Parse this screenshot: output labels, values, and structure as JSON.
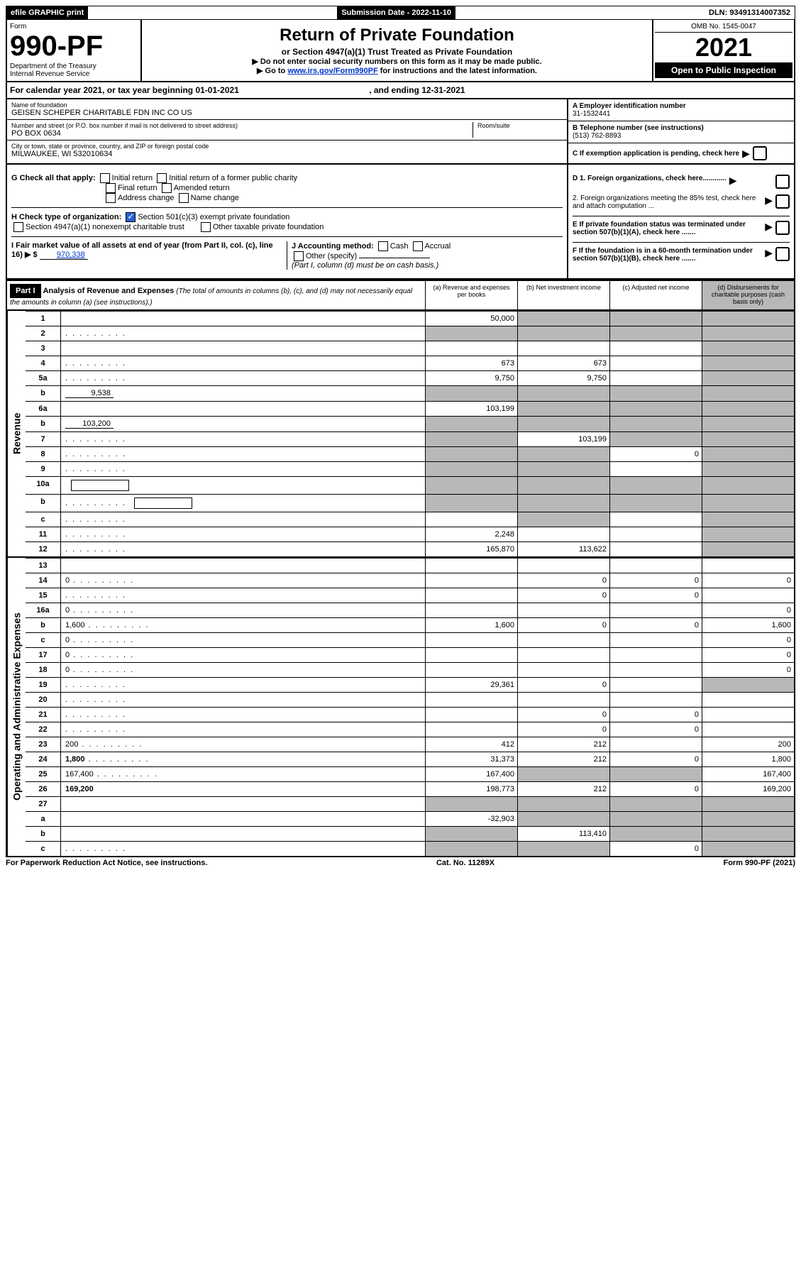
{
  "top": {
    "efile": "efile GRAPHIC print",
    "submission_label": "Submission Date - 2022-11-10",
    "dln": "DLN: 93491314007352"
  },
  "header": {
    "form_label": "Form",
    "form_number": "990-PF",
    "dept": "Department of the Treasury",
    "irs": "Internal Revenue Service",
    "title": "Return of Private Foundation",
    "subtitle": "or Section 4947(a)(1) Trust Treated as Private Foundation",
    "note1": "▶ Do not enter social security numbers on this form as it may be made public.",
    "note2_pre": "▶ Go to ",
    "note2_link": "www.irs.gov/Form990PF",
    "note2_post": " for instructions and the latest information.",
    "omb": "OMB No. 1545-0047",
    "year": "2021",
    "open": "Open to Public Inspection"
  },
  "cal_year": {
    "text_pre": "For calendar year 2021, or tax year beginning ",
    "begin": "01-01-2021",
    "text_mid": " , and ending ",
    "end": "12-31-2021"
  },
  "info": {
    "name_lbl": "Name of foundation",
    "name": "GEISEN SCHEPER CHARITABLE FDN INC CO US",
    "addr_lbl": "Number and street (or P.O. box number if mail is not delivered to street address)",
    "addr": "PO BOX 0634",
    "room_lbl": "Room/suite",
    "city_lbl": "City or town, state or province, country, and ZIP or foreign postal code",
    "city": "MILWAUKEE, WI  532010634",
    "ein_lbl": "A Employer identification number",
    "ein": "31-1532441",
    "phone_lbl": "B Telephone number (see instructions)",
    "phone": "(513) 762-8893",
    "c_lbl": "C If exemption application is pending, check here"
  },
  "checks": {
    "g_lbl": "G Check all that apply:",
    "g_opts": [
      "Initial return",
      "Initial return of a former public charity",
      "Final return",
      "Amended return",
      "Address change",
      "Name change"
    ],
    "h_lbl": "H Check type of organization:",
    "h_501c3": "Section 501(c)(3) exempt private foundation",
    "h_4947": "Section 4947(a)(1) nonexempt charitable trust",
    "h_other": "Other taxable private foundation",
    "i_lbl": "I Fair market value of all assets at end of year (from Part II, col. (c), line 16) ▶ $",
    "i_val": "970,338",
    "j_lbl": "J Accounting method:",
    "j_cash": "Cash",
    "j_accrual": "Accrual",
    "j_other": "Other (specify)",
    "j_note": "(Part I, column (d) must be on cash basis.)",
    "d1": "D 1. Foreign organizations, check here............",
    "d2": "2. Foreign organizations meeting the 85% test, check here and attach computation ...",
    "e": "E  If private foundation status was terminated under section 507(b)(1)(A), check here .......",
    "f": "F  If the foundation is in a 60-month termination under section 507(b)(1)(B), check here .......",
    "arrow": "▶"
  },
  "part1": {
    "label": "Part I",
    "title": "Analysis of Revenue and Expenses",
    "title_note": "(The total of amounts in columns (b), (c), and (d) may not necessarily equal the amounts in column (a) (see instructions).)",
    "col_a": "(a) Revenue and expenses per books",
    "col_b": "(b) Net investment income",
    "col_c": "(c) Adjusted net income",
    "col_d": "(d) Disbursements for charitable purposes (cash basis only)"
  },
  "sides": {
    "revenue": "Revenue",
    "expenses": "Operating and Administrative Expenses"
  },
  "lines": [
    {
      "n": "1",
      "d": "",
      "a": "50,000",
      "b": "",
      "c": "",
      "shade_b": true,
      "shade_c": true,
      "shade_d": true
    },
    {
      "n": "2",
      "d": "",
      "dots": true,
      "a": "",
      "b": "",
      "c": "",
      "shade_a": true,
      "shade_b": true,
      "shade_c": true,
      "shade_d": true
    },
    {
      "n": "3",
      "d": "",
      "a": "",
      "b": "",
      "c": "",
      "shade_d": true
    },
    {
      "n": "4",
      "d": "",
      "dots": true,
      "a": "673",
      "b": "673",
      "c": "",
      "shade_d": true
    },
    {
      "n": "5a",
      "d": "",
      "dots": true,
      "a": "9,750",
      "b": "9,750",
      "c": "",
      "shade_d": true
    },
    {
      "n": "b",
      "d": "",
      "inline": "9,538",
      "a": "",
      "b": "",
      "c": "",
      "shade_a": true,
      "shade_b": true,
      "shade_c": true,
      "shade_d": true,
      "noborder": true
    },
    {
      "n": "6a",
      "d": "",
      "a": "103,199",
      "b": "",
      "c": "",
      "shade_b": true,
      "shade_c": true,
      "shade_d": true
    },
    {
      "n": "b",
      "d": "",
      "inline": "103,200",
      "a": "",
      "b": "",
      "c": "",
      "shade_a": true,
      "shade_b": true,
      "shade_c": true,
      "shade_d": true,
      "noborder": true
    },
    {
      "n": "7",
      "d": "",
      "dots": true,
      "a": "",
      "b": "103,199",
      "c": "",
      "shade_a": true,
      "shade_c": true,
      "shade_d": true
    },
    {
      "n": "8",
      "d": "",
      "dots": true,
      "a": "",
      "b": "",
      "c": "0",
      "shade_a": true,
      "shade_b": true,
      "shade_d": true
    },
    {
      "n": "9",
      "d": "",
      "dots": true,
      "a": "",
      "b": "",
      "c": "",
      "shade_a": true,
      "shade_b": true,
      "shade_d": true
    },
    {
      "n": "10a",
      "d": "",
      "box": true,
      "a": "",
      "b": "",
      "c": "",
      "shade_a": true,
      "shade_b": true,
      "shade_c": true,
      "shade_d": true
    },
    {
      "n": "b",
      "d": "",
      "dots": true,
      "box": true,
      "a": "",
      "b": "",
      "c": "",
      "shade_a": true,
      "shade_b": true,
      "shade_c": true,
      "shade_d": true
    },
    {
      "n": "c",
      "d": "",
      "dots": true,
      "a": "",
      "b": "",
      "c": "",
      "shade_b": true,
      "shade_d": true
    },
    {
      "n": "11",
      "d": "",
      "dots": true,
      "a": "2,248",
      "b": "",
      "c": "",
      "shade_d": true
    },
    {
      "n": "12",
      "d": "",
      "dots": true,
      "bold": true,
      "a": "165,870",
      "b": "113,622",
      "c": "",
      "shade_d": true
    }
  ],
  "exp_lines": [
    {
      "n": "13",
      "d": "",
      "a": "",
      "b": "",
      "c": ""
    },
    {
      "n": "14",
      "d": "0",
      "dots": true,
      "a": "",
      "b": "0",
      "c": "0"
    },
    {
      "n": "15",
      "d": "",
      "dots": true,
      "a": "",
      "b": "0",
      "c": "0"
    },
    {
      "n": "16a",
      "d": "0",
      "dots": true,
      "a": "",
      "b": "",
      "c": ""
    },
    {
      "n": "b",
      "d": "1,600",
      "dots": true,
      "a": "1,600",
      "b": "0",
      "c": "0"
    },
    {
      "n": "c",
      "d": "0",
      "dots": true,
      "a": "",
      "b": "",
      "c": ""
    },
    {
      "n": "17",
      "d": "0",
      "dots": true,
      "a": "",
      "b": "",
      "c": ""
    },
    {
      "n": "18",
      "d": "0",
      "dots": true,
      "a": "",
      "b": "",
      "c": ""
    },
    {
      "n": "19",
      "d": "",
      "dots": true,
      "a": "29,361",
      "b": "0",
      "c": "",
      "shade_d": true
    },
    {
      "n": "20",
      "d": "",
      "dots": true,
      "a": "",
      "b": "",
      "c": ""
    },
    {
      "n": "21",
      "d": "",
      "dots": true,
      "a": "",
      "b": "0",
      "c": "0"
    },
    {
      "n": "22",
      "d": "",
      "dots": true,
      "a": "",
      "b": "0",
      "c": "0"
    },
    {
      "n": "23",
      "d": "200",
      "dots": true,
      "a": "412",
      "b": "212",
      "c": ""
    },
    {
      "n": "24",
      "d": "1,800",
      "dots": true,
      "bold": true,
      "a": "31,373",
      "b": "212",
      "c": "0"
    },
    {
      "n": "25",
      "d": "167,400",
      "dots": true,
      "a": "167,400",
      "b": "",
      "c": "",
      "shade_b": true,
      "shade_c": true
    },
    {
      "n": "26",
      "d": "169,200",
      "bold": true,
      "a": "198,773",
      "b": "212",
      "c": "0"
    },
    {
      "n": "27",
      "d": "",
      "a": "",
      "b": "",
      "c": "",
      "shade_a": true,
      "shade_b": true,
      "shade_c": true,
      "shade_d": true
    },
    {
      "n": "a",
      "d": "",
      "bold": true,
      "a": "-32,903",
      "b": "",
      "c": "",
      "shade_b": true,
      "shade_c": true,
      "shade_d": true
    },
    {
      "n": "b",
      "d": "",
      "bold": true,
      "a": "",
      "b": "113,410",
      "c": "",
      "shade_a": true,
      "shade_c": true,
      "shade_d": true
    },
    {
      "n": "c",
      "d": "",
      "dots": true,
      "bold": true,
      "a": "",
      "b": "",
      "c": "0",
      "shade_a": true,
      "shade_b": true,
      "shade_d": true
    }
  ],
  "footer": {
    "left": "For Paperwork Reduction Act Notice, see instructions.",
    "mid": "Cat. No. 11289X",
    "right": "Form 990-PF (2021)"
  }
}
